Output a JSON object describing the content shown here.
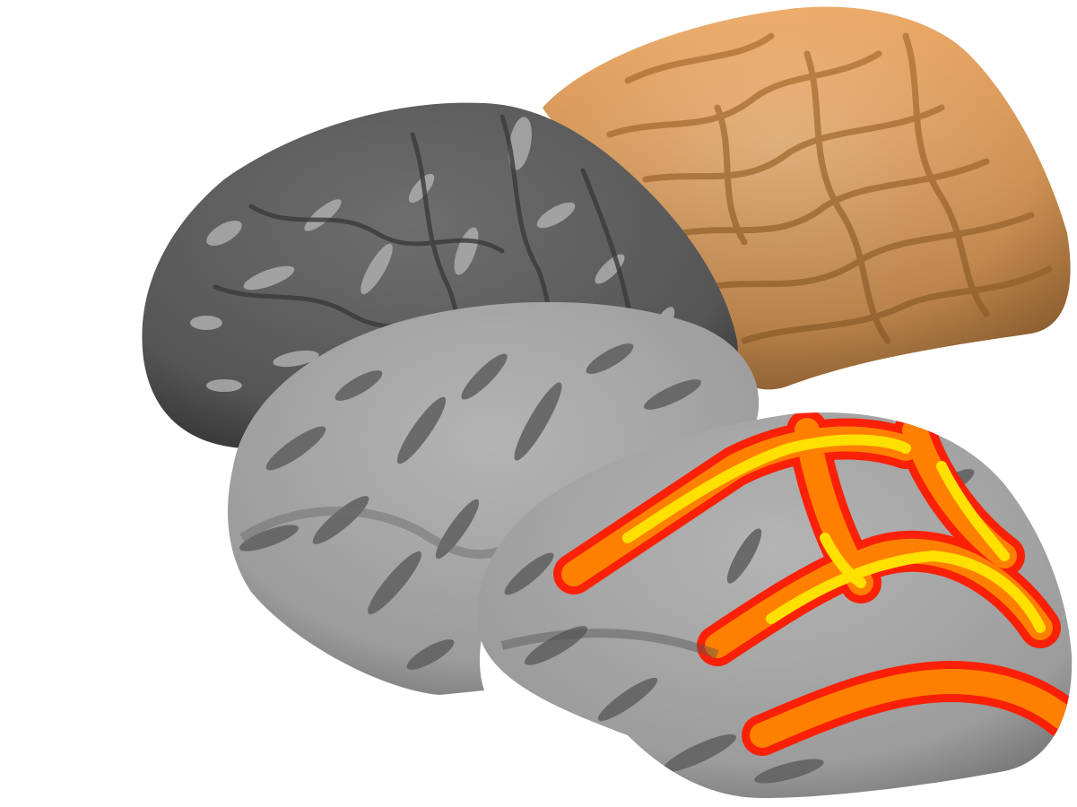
{
  "scene": {
    "background": "#ffffff",
    "surfaces": [
      {
        "name": "pial-surface",
        "color": "#f2b06a"
      },
      {
        "name": "white-matter-surface",
        "color": "#5e5e5e",
        "sulcal_color": "#a9a9a9"
      },
      {
        "name": "inflated-surface",
        "color": "#a8a8a8",
        "sulcal_color": "#626262"
      },
      {
        "name": "inflated-overlay-surface",
        "color": "#a8a8a8",
        "sulcal_color": "#626262",
        "overlay_colors": [
          "#ff1a00",
          "#ff5a00",
          "#ffc000",
          "#ffff00"
        ]
      }
    ]
  }
}
